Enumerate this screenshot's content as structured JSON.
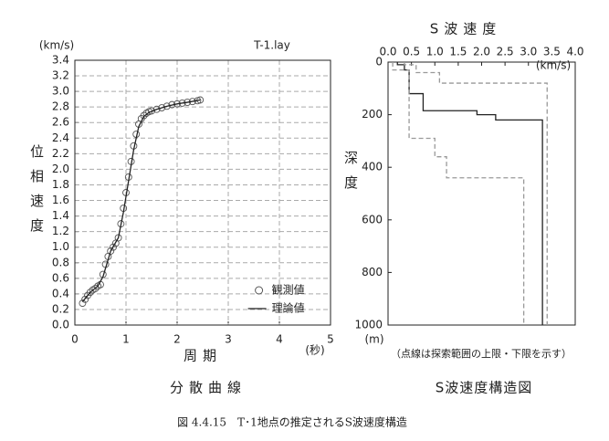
{
  "figure_caption": "図 4.4.15　T･1地点の推定されるS波速度構造",
  "chart_data": [
    {
      "type": "line",
      "title": "分散曲線",
      "annotation": "T-1.lay",
      "xlabel": "周期",
      "x_unit": "(秒)",
      "ylabel": "位相速度",
      "y_unit": "(km/s)",
      "xlim": [
        0,
        5
      ],
      "xticks": [
        0,
        1,
        2,
        3,
        4,
        5
      ],
      "ylim": [
        0,
        3.4
      ],
      "yticks": [
        {
          "value": 0,
          "label": "0.0"
        },
        0.2,
        0.4,
        0.6,
        0.8,
        {
          "value": 1,
          "label": "1.0"
        },
        1.2,
        1.4,
        1.6,
        1.8,
        {
          "value": 2,
          "label": "2.0"
        },
        2.2,
        2.4,
        2.6,
        2.8,
        {
          "value": 3,
          "label": "3.0"
        },
        3.2,
        3.4
      ],
      "grid": true,
      "legend": "lower right",
      "series": [
        {
          "name": "観測値",
          "color": "#555555",
          "markers": true,
          "x": [
            0.15,
            0.2,
            0.25,
            0.3,
            0.35,
            0.4,
            0.45,
            0.5,
            0.55,
            0.6,
            0.65,
            0.7,
            0.75,
            0.8,
            0.85,
            0.9,
            0.95,
            1.0,
            1.05,
            1.1,
            1.15,
            1.2,
            1.25,
            1.3,
            1.35,
            1.4,
            1.45,
            1.5,
            1.6,
            1.7,
            1.8,
            1.9,
            2.0,
            2.1,
            2.2,
            2.3,
            2.4,
            2.45
          ],
          "values": [
            0.28,
            0.33,
            0.38,
            0.42,
            0.45,
            0.47,
            0.5,
            0.52,
            0.65,
            0.78,
            0.88,
            0.95,
            1.0,
            1.05,
            1.12,
            1.3,
            1.5,
            1.7,
            1.9,
            2.1,
            2.3,
            2.45,
            2.58,
            2.65,
            2.69,
            2.72,
            2.74,
            2.75,
            2.77,
            2.79,
            2.81,
            2.83,
            2.84,
            2.85,
            2.86,
            2.87,
            2.88,
            2.89
          ]
        },
        {
          "name": "理論値",
          "color": "#222222",
          "markers": false,
          "x": [
            0.15,
            0.3,
            0.45,
            0.55,
            0.7,
            0.85,
            0.95,
            1.05,
            1.15,
            1.25,
            1.35,
            1.45,
            1.6,
            1.8,
            2.0,
            2.2,
            2.45
          ],
          "values": [
            0.3,
            0.42,
            0.5,
            0.62,
            0.95,
            1.12,
            1.45,
            1.85,
            2.25,
            2.55,
            2.68,
            2.73,
            2.77,
            2.81,
            2.84,
            2.86,
            2.89
          ]
        }
      ]
    },
    {
      "type": "line",
      "title": "S波速度構造図",
      "note": "（点線は探索範囲の上限・下限を示す）",
      "xlabel": "S波速度",
      "x_unit": "(km/s)",
      "ylabel": "深度",
      "y_unit": "(m)",
      "xaxis_position": "top",
      "xlim": [
        0,
        4
      ],
      "xticks": [
        {
          "value": 0,
          "label": "0.0"
        },
        0.5,
        {
          "value": 1,
          "label": "1.0"
        },
        1.5,
        {
          "value": 2,
          "label": "2.0"
        },
        2.5,
        {
          "value": 3,
          "label": "3.0"
        },
        3.5,
        {
          "value": 4,
          "label": "4.0"
        }
      ],
      "ylim": [
        1000,
        0
      ],
      "yticks": [
        0,
        200,
        400,
        600,
        800,
        1000
      ],
      "grid": false,
      "series": [
        {
          "color": "#222222",
          "dashed": false,
          "x": [
            0.2,
            0.2,
            0.35,
            0.35,
            0.45,
            0.45,
            0.75,
            0.75,
            1.9,
            1.9,
            2.3,
            2.3,
            3.3,
            3.3
          ],
          "values": [
            0,
            10,
            10,
            30,
            30,
            120,
            120,
            185,
            185,
            200,
            200,
            220,
            220,
            1000
          ]
        },
        {
          "color": "#999999",
          "dashed": true,
          "x": [
            0.1,
            0.1,
            0.45,
            0.45,
            1.0,
            1.0,
            1.25,
            1.25,
            2.9,
            2.9
          ],
          "values": [
            0,
            30,
            30,
            290,
            290,
            360,
            360,
            440,
            440,
            1000
          ]
        },
        {
          "color": "#999999",
          "dashed": true,
          "x": [
            0.35,
            0.35,
            0.6,
            0.6,
            1.1,
            1.1,
            3.4,
            3.4
          ],
          "values": [
            0,
            10,
            10,
            40,
            40,
            80,
            80,
            1000
          ]
        }
      ]
    }
  ]
}
